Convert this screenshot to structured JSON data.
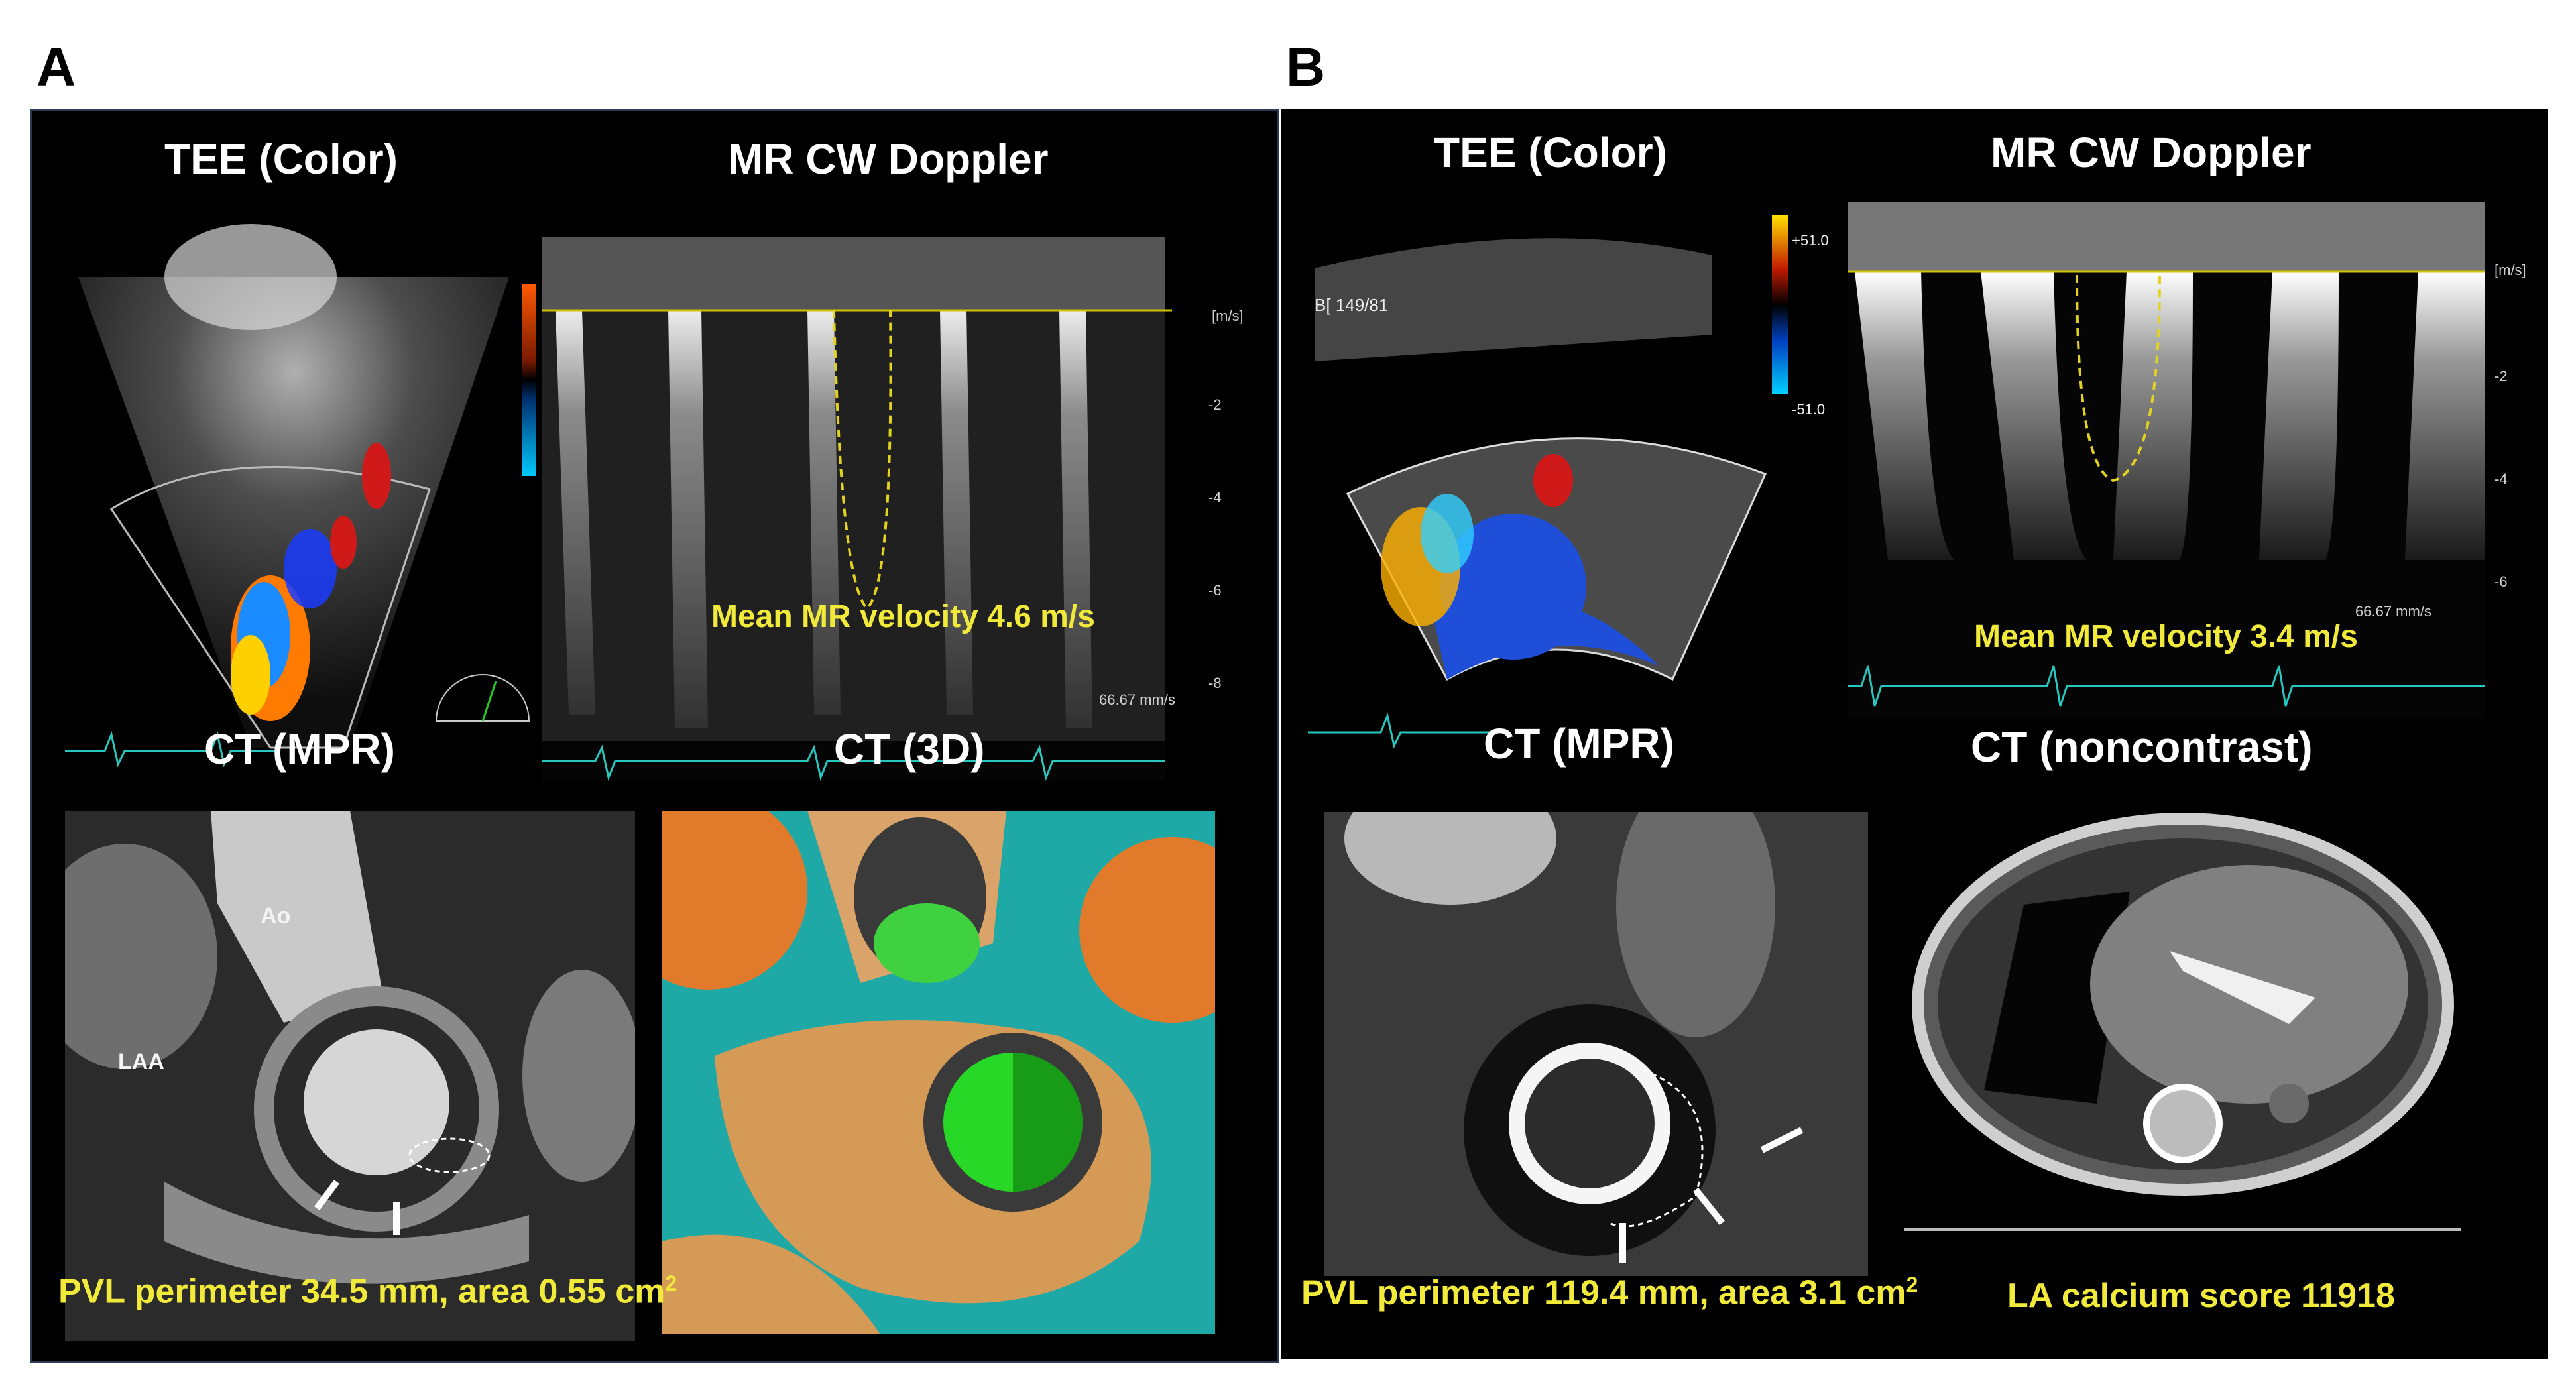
{
  "panels": {
    "a": {
      "letter": "A",
      "tee_title": "TEE (Color)",
      "doppler_title": "MR CW Doppler",
      "mean_velocity": "Mean MR velocity 4.6 m/s",
      "ct_mpr_title": "CT (MPR)",
      "ct_3d_title": "CT (3D)",
      "label_ao": "Ao",
      "label_laa": "LAA",
      "pvl_text": "PVL perimeter 34.5 mm,  area 0.55 cm",
      "pvl_sup": "2",
      "speed": "66.67 mm/s",
      "scale_unit": "[m/s]",
      "scale_ticks": [
        "-2",
        "-4",
        "-6",
        "-8"
      ]
    },
    "b": {
      "letter": "B",
      "tee_title": "TEE (Color)",
      "doppler_title": "MR CW Doppler",
      "mean_velocity": "Mean MR velocity 3.4 m/s",
      "ct_mpr_title": "CT (MPR)",
      "ct_noncontrast_title": "CT (noncontrast)",
      "pvl_text": "PVL perimeter 119.4 mm, area 3.1 cm",
      "pvl_sup": "2",
      "calcium_text": "LA calcium score 11918",
      "angle_readout": "B[ 149/81",
      "color_scale_top": "+51.0",
      "color_scale_bottom": "-51.0",
      "speed": "66.67 mm/s",
      "scale_unit": "[m/s]",
      "scale_ticks": [
        "-2",
        "-4",
        "-6"
      ]
    }
  },
  "colors": {
    "panel_bg": "#000000",
    "highlight_yellow": "#f1ea3a",
    "ecg_cyan": "#27c7c0",
    "doppler_dash": "#e3d21f"
  }
}
